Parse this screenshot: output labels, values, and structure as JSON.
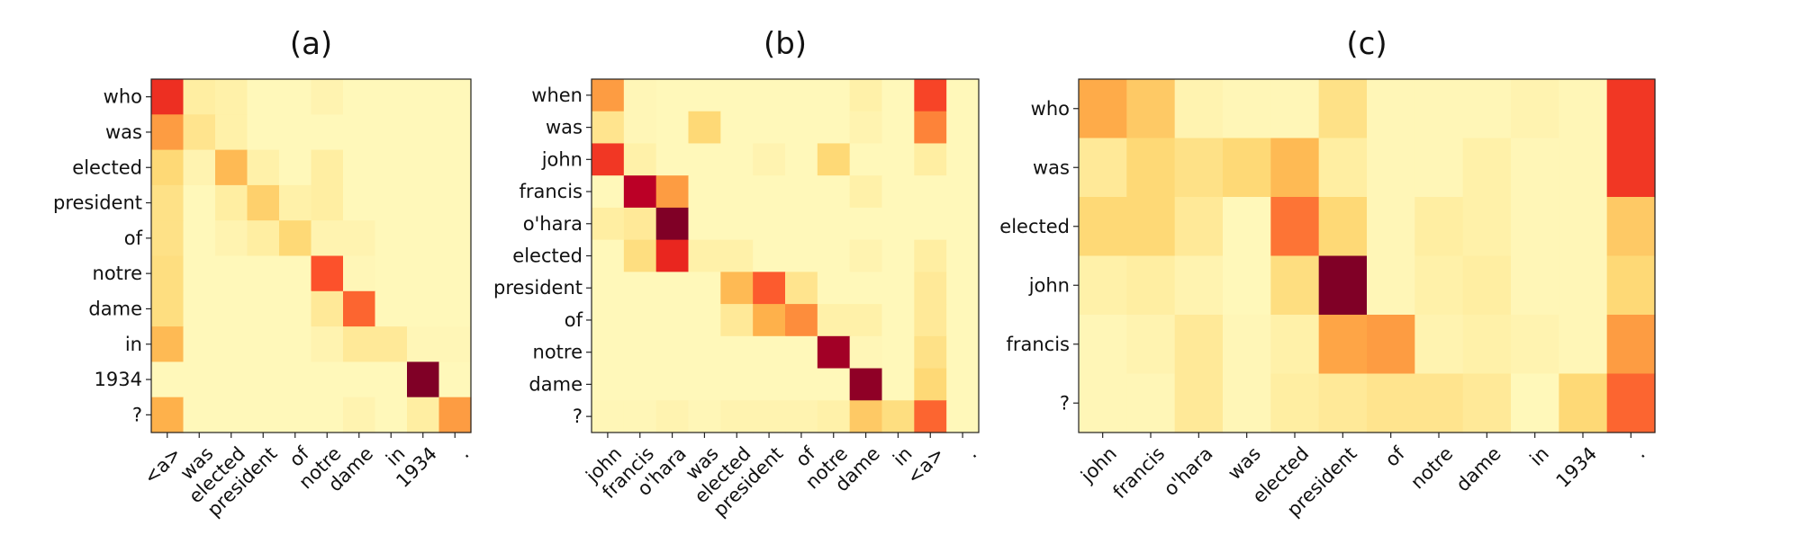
{
  "chart_data": [
    {
      "type": "heatmap",
      "title": "(a)",
      "colormap": "YlOrRd",
      "value_range": [
        0,
        1
      ],
      "x_tick_labels": [
        "<a>",
        "was",
        "elected",
        "president",
        "of",
        "notre",
        "dame",
        "in",
        "1934",
        "."
      ],
      "y_tick_labels": [
        "who",
        "was",
        "elected",
        "president",
        "of",
        "notre",
        "dame",
        "in",
        "1934",
        "?"
      ],
      "values": [
        [
          0.7,
          0.12,
          0.1,
          0.05,
          0.05,
          0.08,
          0.05,
          0.05,
          0.05,
          0.05
        ],
        [
          0.45,
          0.18,
          0.1,
          0.05,
          0.05,
          0.05,
          0.05,
          0.05,
          0.05,
          0.05
        ],
        [
          0.25,
          0.08,
          0.35,
          0.1,
          0.05,
          0.12,
          0.05,
          0.05,
          0.05,
          0.05
        ],
        [
          0.2,
          0.05,
          0.12,
          0.28,
          0.1,
          0.12,
          0.05,
          0.05,
          0.05,
          0.05
        ],
        [
          0.2,
          0.05,
          0.08,
          0.12,
          0.25,
          0.08,
          0.08,
          0.05,
          0.05,
          0.05
        ],
        [
          0.22,
          0.05,
          0.05,
          0.05,
          0.05,
          0.62,
          0.06,
          0.05,
          0.05,
          0.05
        ],
        [
          0.22,
          0.05,
          0.05,
          0.05,
          0.05,
          0.15,
          0.58,
          0.05,
          0.05,
          0.05
        ],
        [
          0.35,
          0.05,
          0.05,
          0.05,
          0.05,
          0.08,
          0.15,
          0.15,
          0.06,
          0.06
        ],
        [
          0.05,
          0.05,
          0.05,
          0.05,
          0.05,
          0.05,
          0.05,
          0.05,
          1.0,
          0.05
        ],
        [
          0.38,
          0.05,
          0.05,
          0.05,
          0.05,
          0.05,
          0.08,
          0.05,
          0.12,
          0.45
        ]
      ]
    },
    {
      "type": "heatmap",
      "title": "(b)",
      "colormap": "YlOrRd",
      "value_range": [
        0,
        1
      ],
      "x_tick_labels": [
        "john",
        "francis",
        "o'hara",
        "was",
        "elected",
        "president",
        "of",
        "notre",
        "dame",
        "in",
        "<a>",
        "."
      ],
      "y_tick_labels": [
        "when",
        "was",
        "john",
        "francis",
        "o'hara",
        "elected",
        "president",
        "of",
        "notre",
        "dame",
        "?"
      ],
      "values": [
        [
          0.45,
          0.06,
          0.05,
          0.05,
          0.05,
          0.05,
          0.05,
          0.05,
          0.1,
          0.05,
          0.65,
          0.05
        ],
        [
          0.18,
          0.06,
          0.05,
          0.25,
          0.05,
          0.05,
          0.05,
          0.05,
          0.08,
          0.05,
          0.52,
          0.05
        ],
        [
          0.68,
          0.1,
          0.05,
          0.05,
          0.05,
          0.08,
          0.05,
          0.25,
          0.05,
          0.05,
          0.12,
          0.05
        ],
        [
          0.05,
          0.88,
          0.45,
          0.05,
          0.05,
          0.05,
          0.05,
          0.05,
          0.1,
          0.05,
          0.05,
          0.05
        ],
        [
          0.12,
          0.15,
          1.0,
          0.05,
          0.05,
          0.05,
          0.05,
          0.05,
          0.05,
          0.05,
          0.05,
          0.05
        ],
        [
          0.05,
          0.22,
          0.72,
          0.1,
          0.1,
          0.05,
          0.05,
          0.05,
          0.08,
          0.05,
          0.12,
          0.05
        ],
        [
          0.05,
          0.05,
          0.05,
          0.05,
          0.35,
          0.6,
          0.18,
          0.05,
          0.05,
          0.05,
          0.15,
          0.05
        ],
        [
          0.05,
          0.05,
          0.05,
          0.05,
          0.15,
          0.38,
          0.5,
          0.1,
          0.1,
          0.05,
          0.15,
          0.05
        ],
        [
          0.05,
          0.05,
          0.05,
          0.05,
          0.05,
          0.05,
          0.05,
          0.93,
          0.06,
          0.05,
          0.2,
          0.05
        ],
        [
          0.05,
          0.05,
          0.05,
          0.05,
          0.05,
          0.05,
          0.05,
          0.05,
          0.97,
          0.05,
          0.25,
          0.05
        ],
        [
          0.06,
          0.06,
          0.08,
          0.06,
          0.08,
          0.08,
          0.08,
          0.1,
          0.3,
          0.22,
          0.58,
          0.05
        ]
      ]
    },
    {
      "type": "heatmap",
      "title": "(c)",
      "colormap": "YlOrRd",
      "value_range": [
        0,
        1
      ],
      "x_tick_labels": [
        "john",
        "francis",
        "o'hara",
        "was",
        "elected",
        "president",
        "of",
        "notre",
        "dame",
        "in",
        "1934",
        "."
      ],
      "y_tick_labels": [
        "who",
        "was",
        "elected",
        "john",
        "francis",
        "?"
      ],
      "values": [
        [
          0.4,
          0.3,
          0.08,
          0.06,
          0.06,
          0.2,
          0.06,
          0.06,
          0.06,
          0.08,
          0.06,
          0.68
        ],
        [
          0.15,
          0.25,
          0.2,
          0.25,
          0.35,
          0.12,
          0.06,
          0.06,
          0.1,
          0.06,
          0.06,
          0.68
        ],
        [
          0.25,
          0.25,
          0.15,
          0.05,
          0.55,
          0.25,
          0.06,
          0.12,
          0.1,
          0.06,
          0.06,
          0.3
        ],
        [
          0.1,
          0.12,
          0.08,
          0.05,
          0.22,
          1.0,
          0.06,
          0.1,
          0.12,
          0.06,
          0.06,
          0.25
        ],
        [
          0.06,
          0.08,
          0.15,
          0.06,
          0.1,
          0.42,
          0.45,
          0.08,
          0.1,
          0.08,
          0.06,
          0.45
        ],
        [
          0.06,
          0.06,
          0.15,
          0.06,
          0.12,
          0.15,
          0.18,
          0.18,
          0.15,
          0.05,
          0.25,
          0.58
        ]
      ]
    }
  ]
}
